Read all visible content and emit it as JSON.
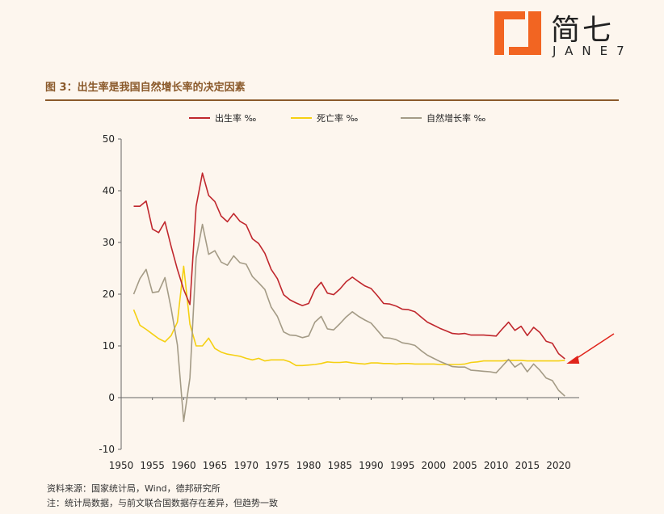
{
  "logo": {
    "brand_cn": "简七",
    "brand_en": "JANE7",
    "mark_color": "#f26522"
  },
  "figure": {
    "title": "图 3：出生率是我国自然增长率的决定因素"
  },
  "footer": {
    "source": "资料来源：国家统计局，Wind，德邦研究所",
    "note": "注：统计局数据，与前文联合国数据存在差异，但趋势一致"
  },
  "chart_data": {
    "type": "line",
    "title": "",
    "xlabel": "",
    "ylabel": "",
    "xlim": [
      1950,
      2022
    ],
    "ylim": [
      -10,
      50
    ],
    "xticks": [
      1950,
      1955,
      1960,
      1965,
      1970,
      1975,
      1980,
      1985,
      1990,
      1995,
      2000,
      2005,
      2010,
      2015,
      2020
    ],
    "yticks": [
      -10,
      0,
      10,
      20,
      30,
      40,
      50
    ],
    "grid": false,
    "legend_position": "top-center",
    "annotation": "red arrow pointing to the 2021 value",
    "x": [
      1952,
      1953,
      1954,
      1955,
      1956,
      1957,
      1958,
      1959,
      1960,
      1961,
      1962,
      1963,
      1964,
      1965,
      1966,
      1967,
      1968,
      1969,
      1970,
      1971,
      1972,
      1973,
      1974,
      1975,
      1976,
      1977,
      1978,
      1979,
      1980,
      1981,
      1982,
      1983,
      1984,
      1985,
      1986,
      1987,
      1988,
      1989,
      1990,
      1991,
      1992,
      1993,
      1994,
      1995,
      1996,
      1997,
      1998,
      1999,
      2000,
      2001,
      2002,
      2003,
      2004,
      2005,
      2006,
      2007,
      2008,
      2009,
      2010,
      2011,
      2012,
      2013,
      2014,
      2015,
      2016,
      2017,
      2018,
      2019,
      2020,
      2021
    ],
    "series": [
      {
        "name": "出生率 ‰",
        "color": "#c0272d",
        "values": [
          37.0,
          37.0,
          38.0,
          32.6,
          31.9,
          34.0,
          29.2,
          24.8,
          20.9,
          18.0,
          37.0,
          43.4,
          39.1,
          37.9,
          35.1,
          34.0,
          35.6,
          34.1,
          33.4,
          30.7,
          29.8,
          27.9,
          24.8,
          23.0,
          19.9,
          18.9,
          18.3,
          17.8,
          18.2,
          20.9,
          22.3,
          20.2,
          19.9,
          21.0,
          22.4,
          23.3,
          22.4,
          21.6,
          21.1,
          19.7,
          18.2,
          18.1,
          17.7,
          17.1,
          17.0,
          16.6,
          15.6,
          14.6,
          14.0,
          13.4,
          12.9,
          12.4,
          12.3,
          12.4,
          12.1,
          12.1,
          12.1,
          12.0,
          11.9,
          13.3,
          14.6,
          13.0,
          13.8,
          12.0,
          13.6,
          12.6,
          10.9,
          10.5,
          8.5,
          7.5
        ]
      },
      {
        "name": "死亡率 ‰",
        "color": "#f5d012",
        "values": [
          17.0,
          14.0,
          13.2,
          12.3,
          11.4,
          10.8,
          12.0,
          14.6,
          25.4,
          14.2,
          10.0,
          10.0,
          11.5,
          9.5,
          8.8,
          8.4,
          8.2,
          8.0,
          7.6,
          7.3,
          7.6,
          7.1,
          7.3,
          7.3,
          7.3,
          6.9,
          6.2,
          6.2,
          6.3,
          6.4,
          6.6,
          6.9,
          6.8,
          6.8,
          6.9,
          6.7,
          6.6,
          6.5,
          6.7,
          6.7,
          6.6,
          6.6,
          6.5,
          6.6,
          6.6,
          6.5,
          6.5,
          6.5,
          6.5,
          6.4,
          6.4,
          6.4,
          6.4,
          6.5,
          6.8,
          6.9,
          7.1,
          7.1,
          7.1,
          7.1,
          7.2,
          7.2,
          7.2,
          7.1,
          7.1,
          7.1,
          7.1,
          7.1,
          7.1,
          7.2
        ]
      },
      {
        "name": "自然增长率 ‰",
        "color": "#a49b86",
        "values": [
          20.0,
          23.0,
          24.8,
          20.3,
          20.5,
          23.2,
          17.2,
          10.2,
          -4.6,
          3.8,
          27.0,
          33.5,
          27.7,
          28.4,
          26.2,
          25.6,
          27.4,
          26.1,
          25.8,
          23.4,
          22.2,
          20.9,
          17.5,
          15.7,
          12.7,
          12.1,
          12.0,
          11.6,
          11.9,
          14.6,
          15.7,
          13.3,
          13.1,
          14.3,
          15.6,
          16.6,
          15.7,
          15.0,
          14.4,
          13.0,
          11.6,
          11.5,
          11.2,
          10.6,
          10.4,
          10.1,
          9.1,
          8.2,
          7.6,
          7.0,
          6.5,
          6.0,
          5.9,
          5.9,
          5.3,
          5.2,
          5.1,
          5.0,
          4.8,
          6.1,
          7.4,
          5.9,
          6.7,
          5.0,
          6.5,
          5.3,
          3.8,
          3.3,
          1.4,
          0.3
        ]
      }
    ]
  }
}
